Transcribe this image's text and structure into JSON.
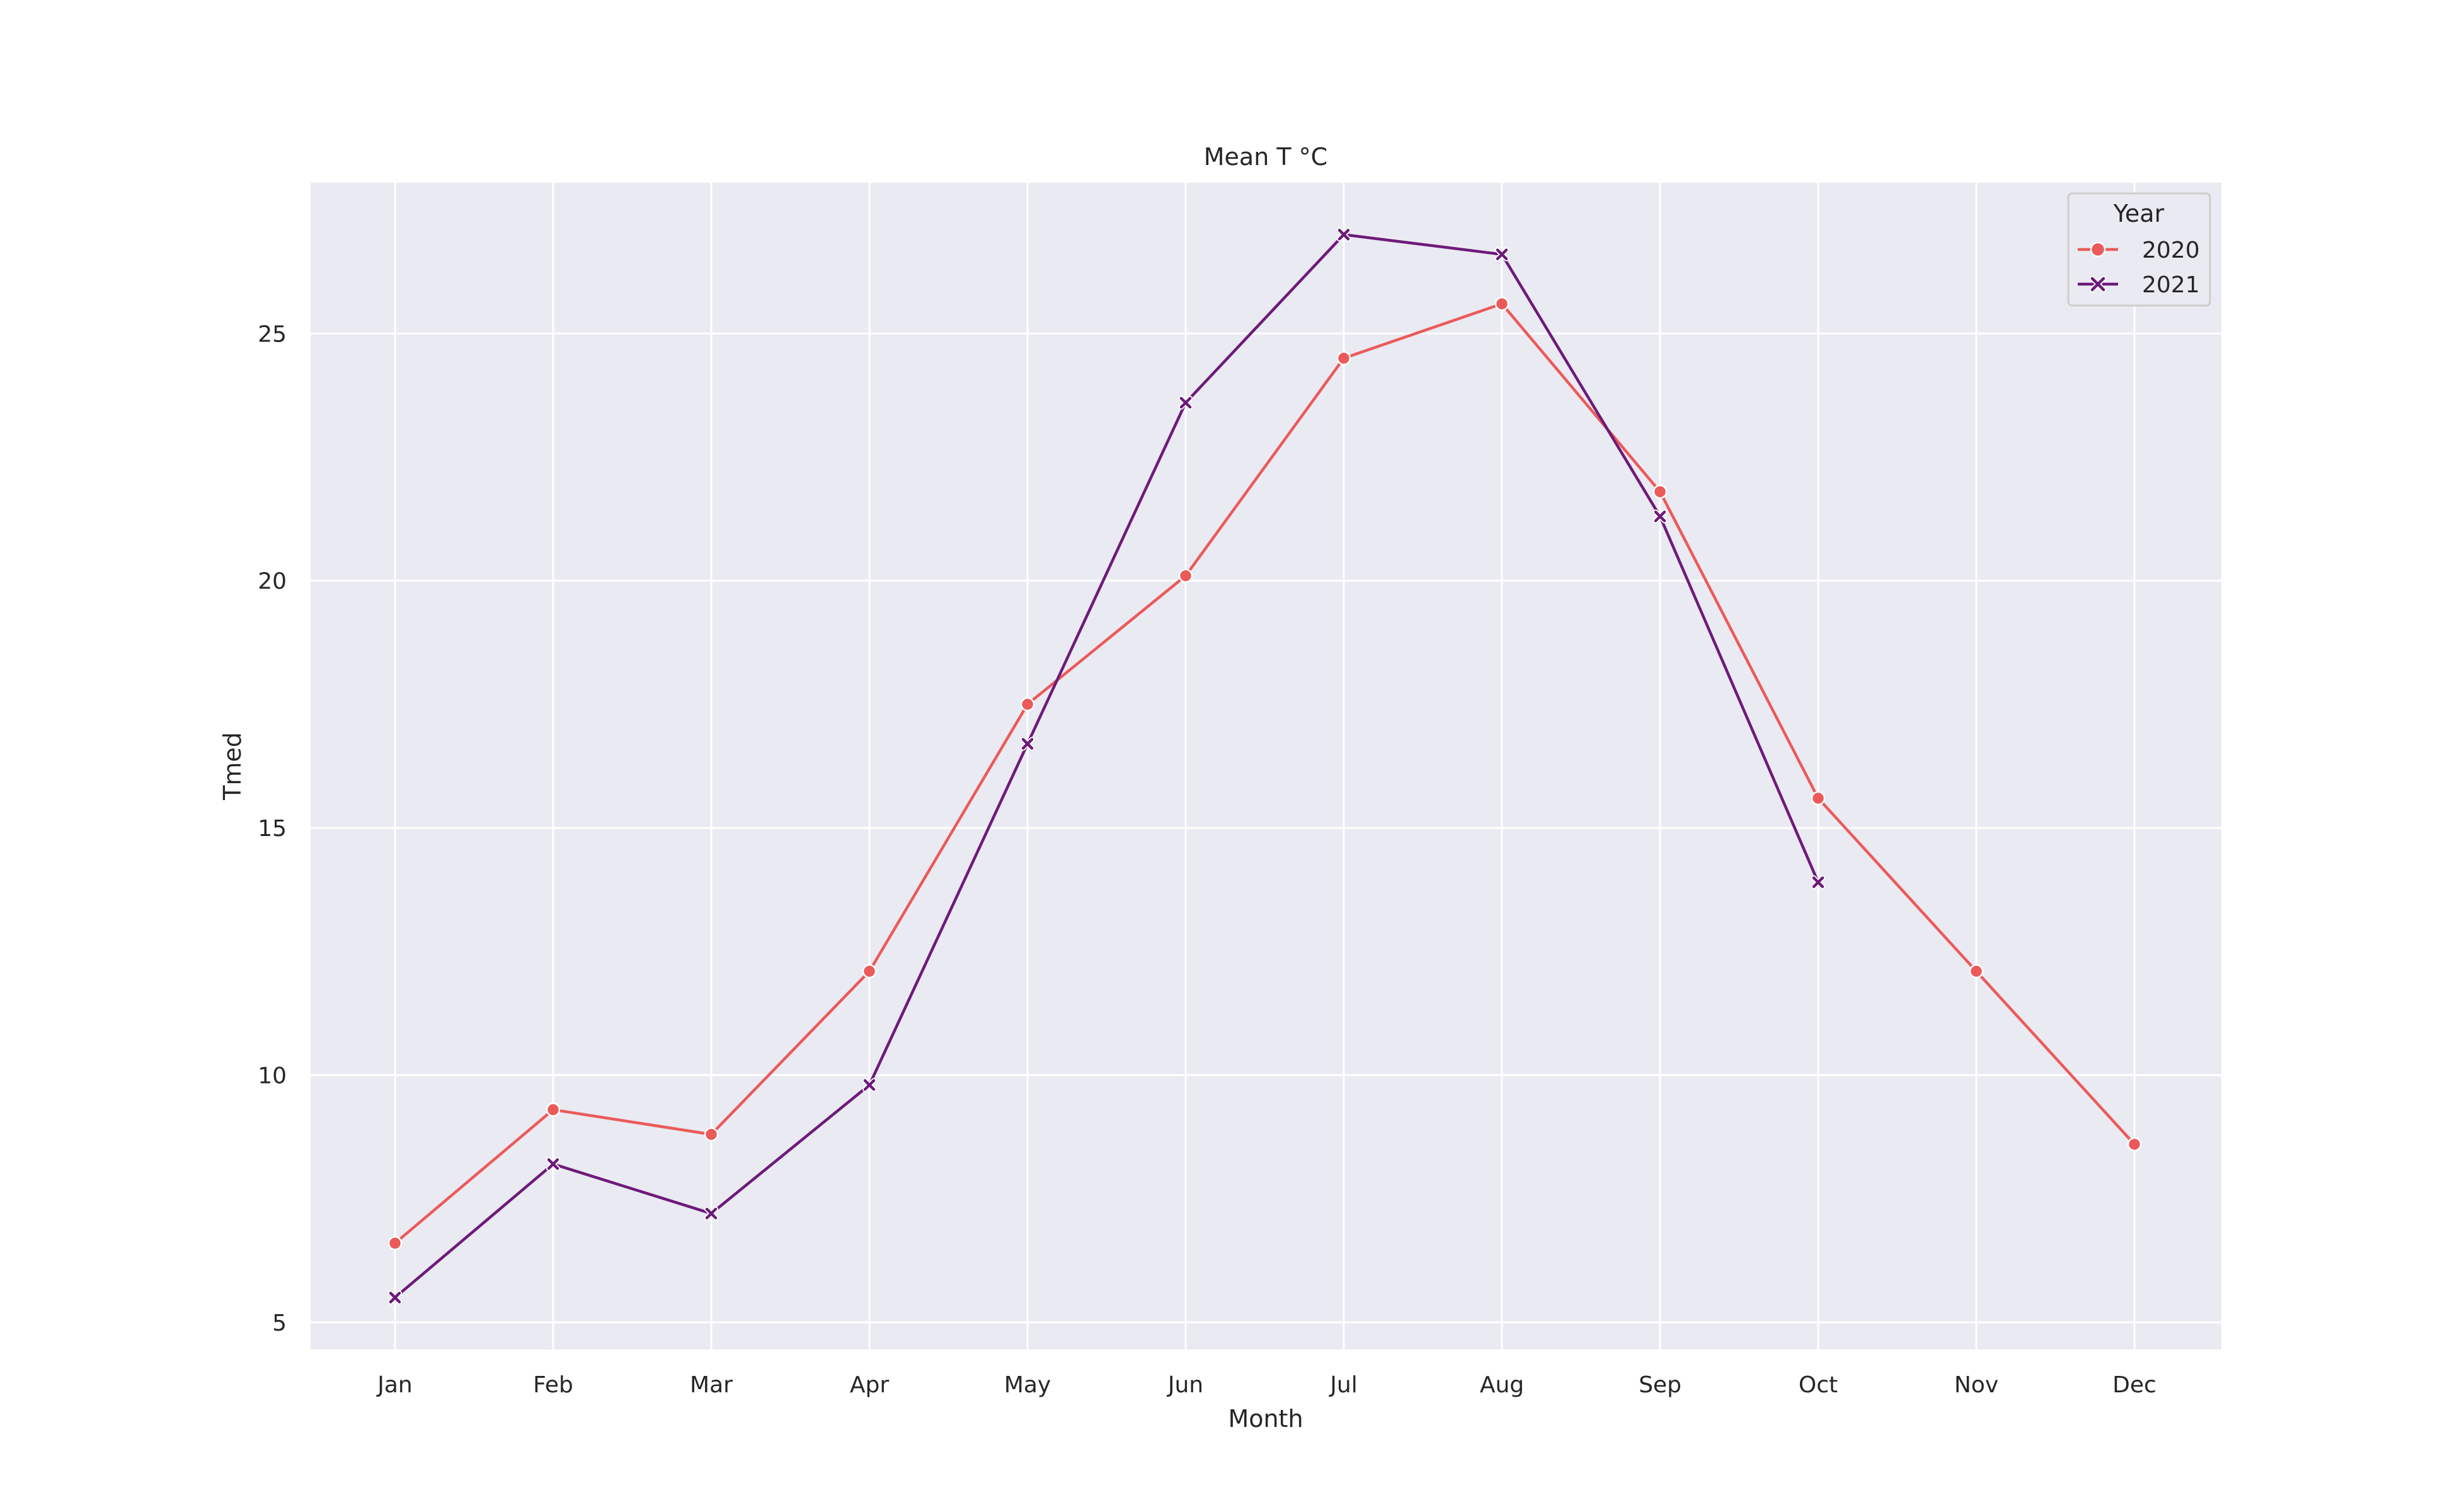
{
  "chart_data": {
    "type": "line",
    "title": "Mean T °C",
    "xlabel": "Month",
    "ylabel": "Tmed",
    "categories": [
      "Jan",
      "Feb",
      "Mar",
      "Apr",
      "May",
      "Jun",
      "Jul",
      "Aug",
      "Sep",
      "Oct",
      "Nov",
      "Dec"
    ],
    "yticks": [
      5,
      10,
      15,
      20,
      25
    ],
    "ylim": [
      4.45,
      28.05
    ],
    "grid": true,
    "legend": {
      "title": "Year",
      "placement": "top-right"
    },
    "series": [
      {
        "name": "2020",
        "color": "#eb5a5a",
        "marker": "circle",
        "values": [
          6.6,
          9.3,
          8.8,
          12.1,
          17.5,
          20.1,
          24.5,
          25.6,
          21.8,
          15.6,
          12.1,
          8.6
        ]
      },
      {
        "name": "2021",
        "color": "#6d1a7a",
        "marker": "x",
        "values": [
          5.5,
          8.2,
          7.2,
          9.8,
          16.7,
          23.6,
          27.0,
          26.6,
          21.3,
          13.9,
          null,
          null
        ]
      }
    ],
    "colors": {
      "plot_background": "#eaeaf2",
      "gridline": "#ffffff",
      "text": "#262626"
    }
  }
}
